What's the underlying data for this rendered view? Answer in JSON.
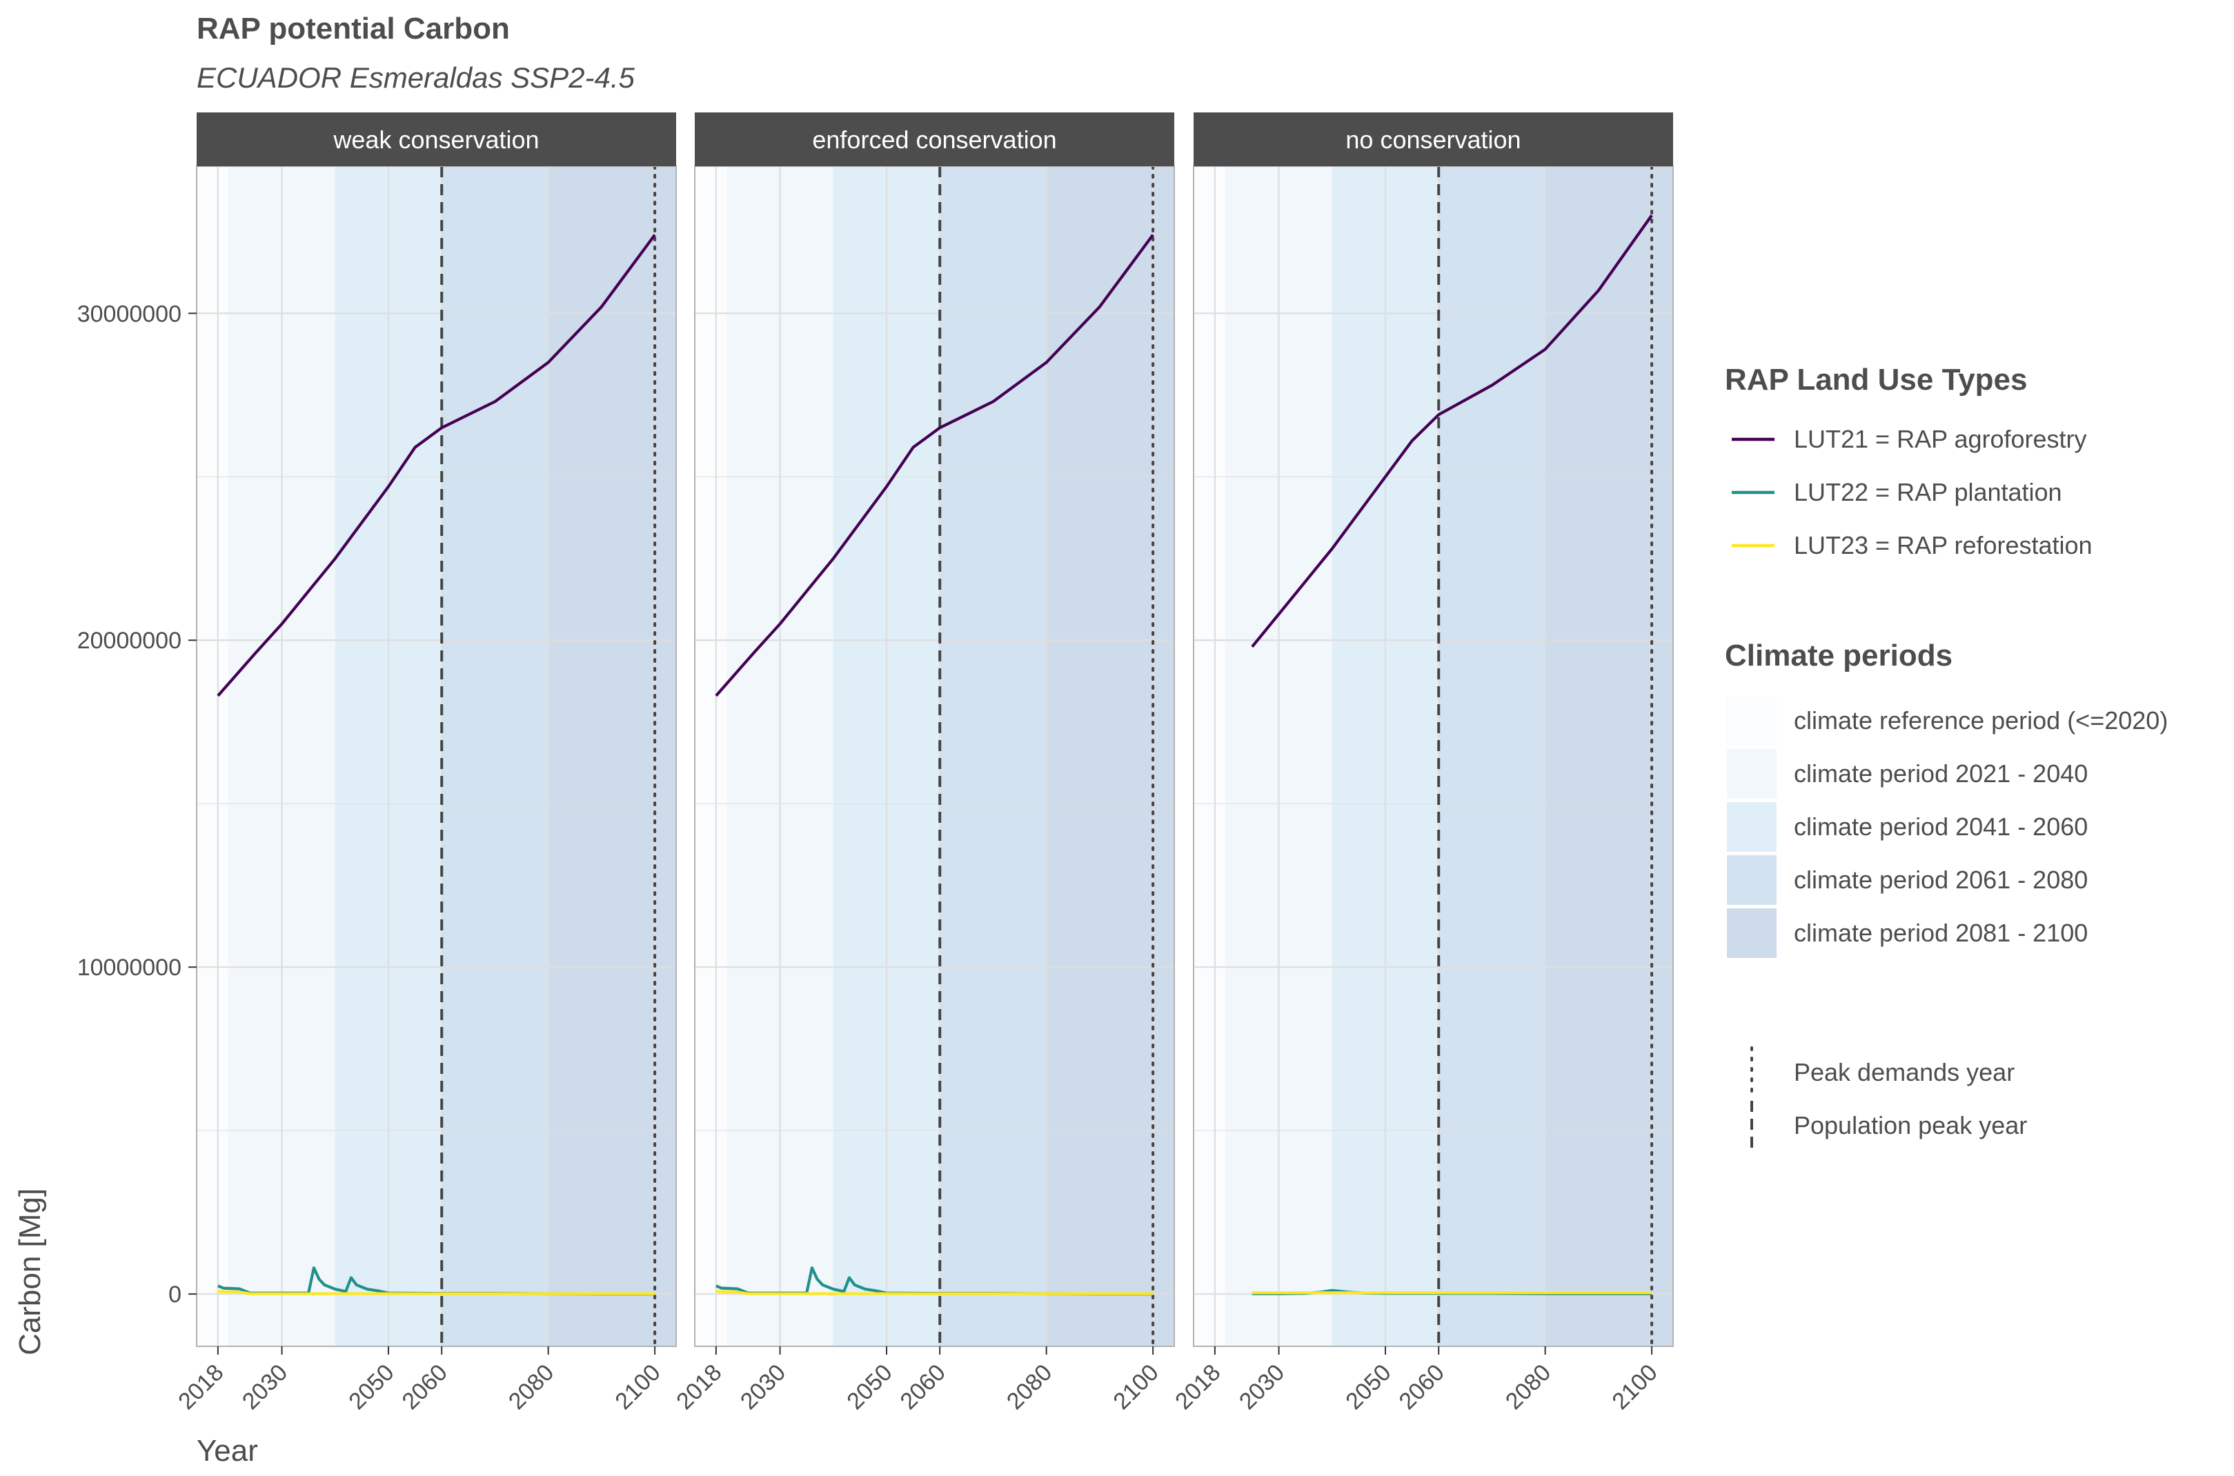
{
  "chart_data": {
    "type": "line",
    "title": "RAP potential Carbon",
    "subtitle": "ECUADOR Esmeraldas SSP2-4.5",
    "xlabel": "Year",
    "ylabel": "Carbon [Mg]",
    "x_ticks": [
      2018,
      2030,
      2050,
      2060,
      2080,
      2100
    ],
    "y_ticks": [
      0,
      10000000,
      20000000,
      30000000
    ],
    "y_tick_labels": [
      "0",
      "10000000",
      "20000000",
      "30000000"
    ],
    "xlim": [
      2014,
      2104
    ],
    "ylim": [
      -1600000,
      34500000
    ],
    "grid": true,
    "legend_position": "right",
    "colors": {
      "strip_bg": "#4d4d4d",
      "grid": "#dedede",
      "panel_border": "#b3b3b3",
      "ref_line": "#444444"
    },
    "climate_periods": [
      {
        "label": "climate reference period (<=2020)",
        "start": 2014,
        "end": 2020,
        "color": "#fafcfd"
      },
      {
        "label": "climate period 2021 - 2040",
        "start": 2020,
        "end": 2040,
        "color": "#f1f7fa"
      },
      {
        "label": "climate period 2041 - 2060",
        "start": 2040,
        "end": 2060,
        "color": "#e0eff7"
      },
      {
        "label": "climate period 2061 - 2080",
        "start": 2060,
        "end": 2080,
        "color": "#d3e2f0"
      },
      {
        "label": "climate period 2081 - 2100",
        "start": 2080,
        "end": 2104,
        "color": "#cedbea"
      }
    ],
    "series_legend_title": "RAP Land Use Types",
    "climate_legend_title": "Climate periods",
    "line_legend": [
      {
        "label": "Peak demands year",
        "style": "dotted"
      },
      {
        "label": "Population peak year",
        "style": "dashed"
      }
    ],
    "panels": [
      {
        "name": "weak conservation",
        "peak_demands_year": 2100,
        "population_peak_year": 2060,
        "series": [
          {
            "name": "LUT21 = RAP agroforestry",
            "color": "#440154",
            "x": [
              2018,
              2025,
              2030,
              2035,
              2040,
              2045,
              2050,
              2055,
              2060,
              2070,
              2080,
              2090,
              2100
            ],
            "y": [
              18300000,
              19600000,
              20500000,
              21500000,
              22500000,
              23600000,
              24700000,
              25900000,
              26500000,
              27300000,
              28500000,
              30200000,
              32400000
            ]
          },
          {
            "name": "LUT22 = RAP plantation",
            "color": "#21908c",
            "x": [
              2018,
              2019,
              2022,
              2024,
              2030,
              2035,
              2036,
              2037,
              2038,
              2040,
              2042,
              2043,
              2044,
              2046,
              2048,
              2050,
              2060,
              2070,
              2080,
              2090,
              2100
            ],
            "y": [
              250000,
              180000,
              160000,
              30000,
              30000,
              30000,
              800000,
              450000,
              280000,
              150000,
              80000,
              500000,
              280000,
              150000,
              100000,
              30000,
              20000,
              20000,
              10000,
              0,
              0
            ]
          },
          {
            "name": "LUT23 = RAP reforestation",
            "color": "#fde725",
            "x": [
              2018,
              2022,
              2024,
              2030,
              2040,
              2050,
              2060,
              2070,
              2080,
              2090,
              2100
            ],
            "y": [
              80000,
              60000,
              10000,
              10000,
              10000,
              10000,
              10000,
              10000,
              10000,
              10000,
              10000
            ]
          }
        ]
      },
      {
        "name": "enforced conservation",
        "peak_demands_year": 2100,
        "population_peak_year": 2060,
        "series": [
          {
            "name": "LUT21 = RAP agroforestry",
            "color": "#440154",
            "x": [
              2018,
              2025,
              2030,
              2035,
              2040,
              2045,
              2050,
              2055,
              2060,
              2070,
              2080,
              2090,
              2100
            ],
            "y": [
              18300000,
              19600000,
              20500000,
              21500000,
              22500000,
              23600000,
              24700000,
              25900000,
              26500000,
              27300000,
              28500000,
              30200000,
              32400000
            ]
          },
          {
            "name": "LUT22 = RAP plantation",
            "color": "#21908c",
            "x": [
              2018,
              2019,
              2022,
              2024,
              2030,
              2035,
              2036,
              2037,
              2038,
              2040,
              2042,
              2043,
              2044,
              2046,
              2048,
              2050,
              2060,
              2070,
              2080,
              2090,
              2100
            ],
            "y": [
              250000,
              180000,
              160000,
              30000,
              30000,
              30000,
              800000,
              450000,
              280000,
              150000,
              80000,
              500000,
              280000,
              150000,
              100000,
              30000,
              20000,
              20000,
              10000,
              0,
              0
            ]
          },
          {
            "name": "LUT23 = RAP reforestation",
            "color": "#fde725",
            "x": [
              2018,
              2022,
              2024,
              2030,
              2040,
              2050,
              2060,
              2070,
              2080,
              2090,
              2100
            ],
            "y": [
              80000,
              60000,
              10000,
              10000,
              10000,
              10000,
              10000,
              10000,
              10000,
              10000,
              10000
            ]
          }
        ]
      },
      {
        "name": "no conservation",
        "peak_demands_year": 2100,
        "population_peak_year": 2060,
        "series": [
          {
            "name": "LUT21 = RAP agroforestry",
            "color": "#440154",
            "x": [
              2025,
              2030,
              2035,
              2040,
              2045,
              2050,
              2055,
              2060,
              2070,
              2080,
              2090,
              2100
            ],
            "y": [
              19800000,
              20800000,
              21800000,
              22800000,
              23900000,
              25000000,
              26100000,
              26900000,
              27800000,
              28900000,
              30700000,
              33000000
            ]
          },
          {
            "name": "LUT22 = RAP plantation",
            "color": "#21908c",
            "x": [
              2025,
              2030,
              2035,
              2038,
              2040,
              2043,
              2046,
              2050,
              2060,
              2070,
              2080,
              2090,
              2100
            ],
            "y": [
              10000,
              10000,
              20000,
              60000,
              110000,
              60000,
              30000,
              20000,
              20000,
              20000,
              10000,
              10000,
              10000
            ]
          },
          {
            "name": "LUT23 = RAP reforestation",
            "color": "#fde725",
            "x": [
              2025,
              2030,
              2040,
              2050,
              2060,
              2070,
              2080,
              2090,
              2100
            ],
            "y": [
              40000,
              40000,
              40000,
              40000,
              40000,
              40000,
              40000,
              40000,
              40000
            ]
          }
        ]
      }
    ]
  }
}
